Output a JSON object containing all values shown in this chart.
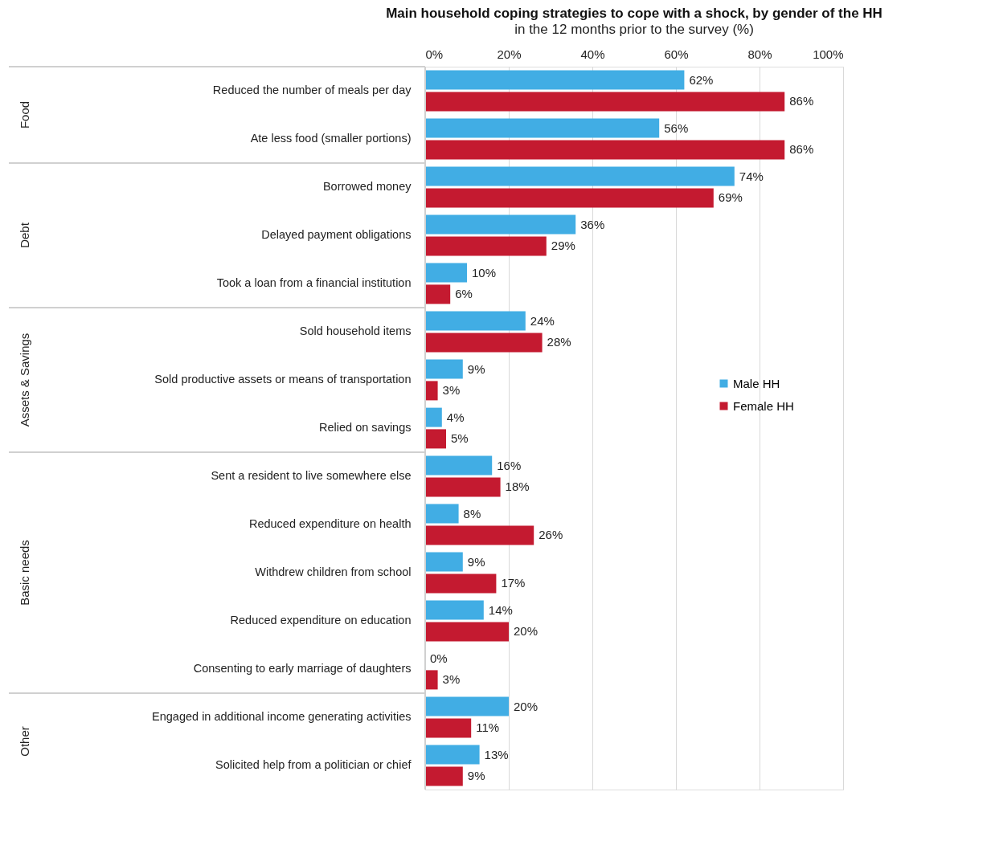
{
  "chart_data": {
    "type": "bar",
    "orientation": "horizontal",
    "title": "Main household coping strategies to cope with a shock, by gender of the HH",
    "subtitle": "in the 12 months prior to the survey (%)",
    "categories": [
      "Reduced the number of meals per day",
      "Ate less food (smaller portions)",
      "Borrowed money",
      "Delayed payment obligations",
      "Took a loan from a financial institution",
      "Sold household items",
      "Sold productive assets or means of transportation",
      "Relied on savings",
      "Sent a  resident to live somewhere else",
      "Reduced expenditure on health",
      "Withdrew children from school",
      "Reduced expenditure on education",
      "Consenting to early marriage of daughters",
      "Engaged in additional income generating activities",
      "Solicited help from a politician or chief"
    ],
    "series": [
      {
        "name": "Male HH",
        "color": "#41ade4",
        "values": [
          62,
          56,
          74,
          36,
          10,
          24,
          9,
          4,
          16,
          8,
          9,
          14,
          0,
          20,
          13
        ],
        "value_labels": [
          "62%",
          "56%",
          "74%",
          "36%",
          "10%",
          "24%",
          "9%",
          "4%",
          "16%",
          "8%",
          "9%",
          "14%",
          "0%",
          "20%",
          "13%"
        ]
      },
      {
        "name": "Female HH",
        "color": "#c41a30",
        "values": [
          86,
          86,
          69,
          29,
          6,
          28,
          3,
          5,
          18,
          26,
          17,
          20,
          3,
          11,
          9
        ],
        "value_labels": [
          "86%",
          "86%",
          "69%",
          "29%",
          "6%",
          "28%",
          "3%",
          "5%",
          "18%",
          "26%",
          "17%",
          "20%",
          "3%",
          "11%",
          "9%"
        ]
      }
    ],
    "xlim": [
      0,
      100
    ],
    "xticks": [
      {
        "value": 0,
        "label": "0%"
      },
      {
        "value": 20,
        "label": "20%"
      },
      {
        "value": 40,
        "label": "40%"
      },
      {
        "value": 60,
        "label": "60%"
      },
      {
        "value": 80,
        "label": "80%"
      },
      {
        "value": 100,
        "label": "100%"
      }
    ],
    "annotations": [
      "Food",
      "Debt",
      "Assets & Savings",
      "Basic needs",
      "Other"
    ],
    "grid": "x",
    "legend": "right"
  }
}
